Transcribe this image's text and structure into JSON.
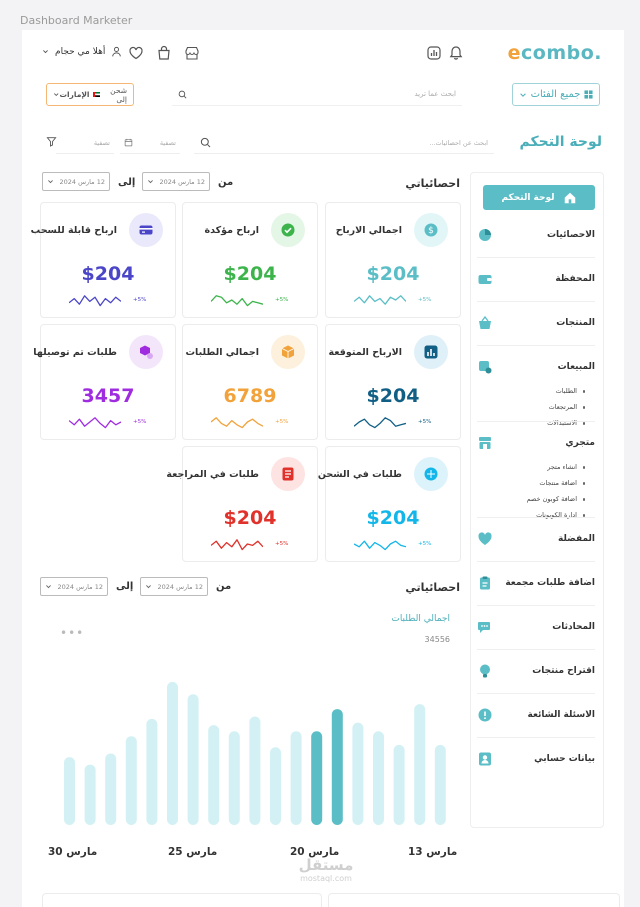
{
  "frame_label": "Dashboard Marketer",
  "topbar": {
    "logo_accent": "e",
    "logo_rest": "combo.",
    "greeting": "أهلا مي حجام",
    "icons": [
      "bell-icon",
      "chart-icon",
      "store-icon",
      "bag-icon",
      "heart-icon",
      "user-icon"
    ]
  },
  "search": {
    "category_label": "جميع الفئات",
    "placeholder": "ابحث عما تريد",
    "ship_to_label": "شحن إلى",
    "ship_country": "الإمارات"
  },
  "page": {
    "title": "لوحة التحكم",
    "stats_search_placeholder": "ابحث عن احصائيات...",
    "date_filter_placeholder": "تصفية"
  },
  "sidebar": {
    "active_label": "لوحة التحكم",
    "items": [
      {
        "label": "الاحصائيات",
        "icon": "pie-chart-icon"
      },
      {
        "label": "المحفظة",
        "icon": "wallet-icon"
      },
      {
        "label": "المنتجات",
        "icon": "basket-icon"
      },
      {
        "label": "المبيعات",
        "icon": "sales-cart-icon",
        "sub": [
          "الطلبات",
          "المرتجعات",
          "الاستبدالات"
        ]
      },
      {
        "label": "متجري",
        "icon": "shop-icon",
        "sub": [
          "انشاء متجر",
          "اضافة منتجات",
          "اضافة كوبون خصم",
          "ادارة الكوبونات"
        ]
      },
      {
        "label": "المفضلة",
        "icon": "heart-icon"
      },
      {
        "label": "اضافة طلبات مجمعة",
        "icon": "clipboard-icon"
      },
      {
        "label": "المحادثات",
        "icon": "chat-icon"
      },
      {
        "label": "اقتراح منتجات",
        "icon": "lightbulb-icon"
      },
      {
        "label": "الاسئلة الشائعة",
        "icon": "exclamation-icon"
      },
      {
        "label": "بيانات حسابي",
        "icon": "profile-icon"
      }
    ]
  },
  "stats": {
    "title": "احصائياتي",
    "from_label": "من",
    "to_label": "إلى",
    "from_date": "12 مارس 2024",
    "to_date": "12 مارس 2024",
    "cards": [
      {
        "title": "اجمالي الارباح",
        "value": "$204",
        "change": "+5%",
        "color": "#5bbec7",
        "icon": "dollar-icon",
        "icon_bg": "#e2f6f8"
      },
      {
        "title": "ارباح مؤكدة",
        "value": "$204",
        "change": "+5%",
        "color": "#3cb44b",
        "icon": "check-icon",
        "icon_bg": "#e4f6e6"
      },
      {
        "title": "ارباح قابلة للسحب",
        "value": "$204",
        "change": "+5%",
        "color": "#4b46c8",
        "icon": "card-icon",
        "icon_bg": "#eae9fb"
      },
      {
        "title": "الارباح المتوقعة",
        "value": "$204",
        "change": "+5%",
        "color": "#125f86",
        "icon": "bar-chart-icon",
        "icon_bg": "#dff0f8"
      },
      {
        "title": "اجمالي الطلبات",
        "value": "6789",
        "change": "+5%",
        "color": "#f2a23a",
        "icon": "box-icon",
        "icon_bg": "#fdf0dc"
      },
      {
        "title": "طلبات تم توصيلها",
        "value": "3457",
        "change": "+5%",
        "color": "#a02ce0",
        "icon": "delivered-icon",
        "icon_bg": "#f3e6fb"
      },
      {
        "title": "طلبات في الشحن",
        "value": "$204",
        "change": "+5%",
        "color": "#13b6e8",
        "icon": "shipping-icon",
        "icon_bg": "#ddf3fb"
      },
      {
        "title": "طلبات في المراجعة",
        "value": "$204",
        "change": "+5%",
        "color": "#e0312b",
        "icon": "review-icon",
        "icon_bg": "#fde3e2"
      }
    ]
  },
  "stats2": {
    "title": "احصائياتي",
    "from_label": "من",
    "to_label": "إلى",
    "from_date": "12 مارس 2024",
    "to_date": "12 مارس 2024"
  },
  "chart_data": {
    "type": "bar",
    "title": "اجمالي الطلبات",
    "total": "34556",
    "tick_labels": [
      "13 مارس",
      "20 مارس",
      "25 مارس",
      "30 مارس"
    ],
    "values": [
      0.49,
      0.65,
      0.98,
      0.65,
      0.76,
      0.83,
      0.94,
      0.76,
      0.76,
      0.63,
      0.88,
      0.76,
      0.81,
      1.06,
      1.16,
      0.86,
      0.72,
      0.58,
      0.49,
      0.55
    ],
    "highlight": [
      6,
      7
    ],
    "color": "#d3f1f4",
    "highlight_color": "#5bbec7"
  },
  "more_icon": "more-dots-icon"
}
